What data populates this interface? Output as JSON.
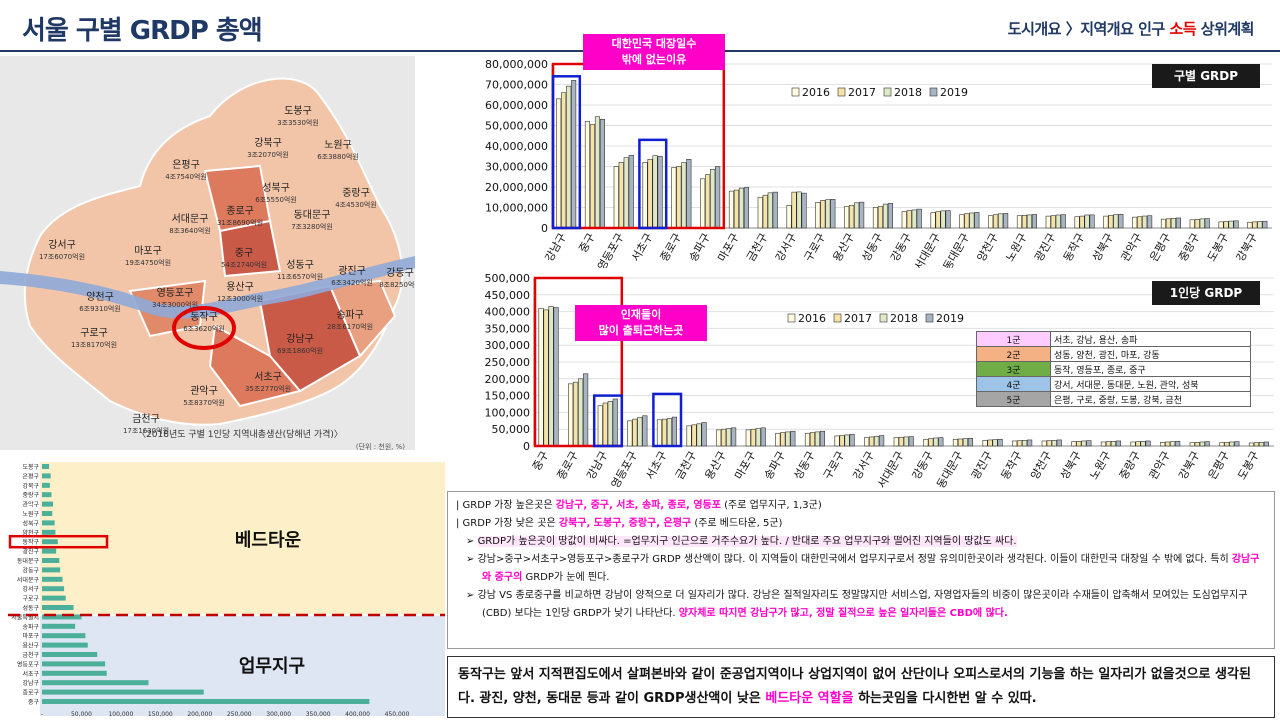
{
  "header": {
    "title": "서울 구별 GRDP 총액",
    "nav_prefix": "도시개요 〉지역개요 인구 ",
    "nav_highlight": "소득",
    "nav_suffix": " 상위계획"
  },
  "map": {
    "caption": "〈2018년도 구별 1인당 지역내총생산(당해년 가격)〉",
    "unit": "(단위 : 천원, %)",
    "districts": [
      {
        "name": "도봉구",
        "value": "3조3530억원"
      },
      {
        "name": "강북구",
        "value": "3조2070억원"
      },
      {
        "name": "노원구",
        "value": "6조3880억원"
      },
      {
        "name": "은평구",
        "value": "4조7540억원"
      },
      {
        "name": "성북구",
        "value": "6조5550억원"
      },
      {
        "name": "중랑구",
        "value": "4조4530억원"
      },
      {
        "name": "서대문구",
        "value": "8조3640억원"
      },
      {
        "name": "종로구",
        "value": "31조8690억원"
      },
      {
        "name": "동대문구",
        "value": "7조3280억원"
      },
      {
        "name": "강서구",
        "value": "17조6070억원"
      },
      {
        "name": "마포구",
        "value": "19조4750억원"
      },
      {
        "name": "중구",
        "value": "54조2740억원"
      },
      {
        "name": "성동구",
        "value": "11조6570억원"
      },
      {
        "name": "광진구",
        "value": "6조3420억원"
      },
      {
        "name": "강동구",
        "value": "8조8250억원"
      },
      {
        "name": "양천구",
        "value": "6조9310억원"
      },
      {
        "name": "영등포구",
        "value": "34조3000억원"
      },
      {
        "name": "용산구",
        "value": "12조3000억원"
      },
      {
        "name": "송파구",
        "value": "28조6170억원"
      },
      {
        "name": "구로구",
        "value": "13조8170억원"
      },
      {
        "name": "동작구",
        "value": "6조3620억원"
      },
      {
        "name": "강남구",
        "value": "69조1860억원"
      },
      {
        "name": "서초구",
        "value": "35조2770억원"
      },
      {
        "name": "관악구",
        "value": "5조8370억원"
      },
      {
        "name": "금천구",
        "value": "17조1630억원"
      }
    ]
  },
  "callouts": {
    "top": "대한민국 대장일수\n밖에 없는이유",
    "mid": "인재들이\n많이 출퇴근하는곳"
  },
  "labels": {
    "chart1": "구별 GRDP",
    "chart2": "1인당 GRDP",
    "bed": "베드타운",
    "biz": "업무지구"
  },
  "groups": [
    {
      "label": "1군",
      "members": "서초, 강남, 용산, 송파",
      "color": "#ffccff"
    },
    {
      "label": "2군",
      "members": "성동, 양천, 광진, 마포, 강동",
      "color": "#f4b183"
    },
    {
      "label": "3군",
      "members": "동작, 영등포, 종로, 중구",
      "color": "#70ad47"
    },
    {
      "label": "4군",
      "members": "강서, 서대문, 동대문, 노원, 관악, 성북",
      "color": "#9dc3e6"
    },
    {
      "label": "5군",
      "members": "은평, 구로, 중랑, 도봉, 강북, 금천",
      "color": "#a5a5a5"
    }
  ],
  "notes": {
    "l1a": "| GRDP 가장 높은곳은 ",
    "l1b": "강남구, 중구, 서초, 송파, 종로, 영등포",
    "l1c": " (주로 업무지구, 1,3군)",
    "l2a": "| GRDP 가장 낮은 곳은 ",
    "l2b": "강북구, 도봉구, 중랑구, 은평구",
    "l2c": " (주로 베드타운, 5군)",
    "l3": "GRDP가 높은곳이 땅값이 비싸다. =업무지구 인근으로 거주수요가 높다. / 반대로 주요 업무지구와 떨어진 지역들이 땅값도 싸다.",
    "l4a": "강남>중구>서초구>영등포구>종로구가 GRDP 생산액이 많다. 이 지역들이 대한민국에서 업무지구로서 정말 유의미한곳이라 생각된다. 이들이 대한민국 대장일 수 밖에 없다. 특히 ",
    "l4b": "강남구와 중구의",
    "l4c": " GRDP가 눈에 띈다.",
    "l5a": "강남 VS 종로중구를 비교하면 강남이 양적으로 더 일자리가 많다. 강남은 질적일자리도 정말많지만 서비스업, 자영업자들의 비중이 많은곳이라 수재들이 압축해서 모여있는 도심업무지구(CBD) 보다는 1인당 GRDP가 낮기 나타난다. ",
    "l5b": "양자체로 따지면 강남구가 많고, 정말 질적으로 높은 일자리들은 CBD에 많다."
  },
  "conclusion": {
    "a": "동작구는 앞서 지적편집도에서 살펴본바와 같이 준공업지역이나 상업지역이 없어 산단이나 오피스로서의 기능을 하는 일자리가 없을것으로 생각된다. 광진, 양천, 동대문 등과 같이 GRDP생산액이 낮은 ",
    "b": "베드타운 역할을",
    "c": " 하는곳임을 다시한번 알 수 있따."
  },
  "chart_data": [
    {
      "type": "bar",
      "title": "구별 GRDP",
      "categories": [
        "강남구",
        "중구",
        "영등포구",
        "서초구",
        "종로구",
        "송파구",
        "마포구",
        "금천구",
        "강서구",
        "구로구",
        "용산구",
        "성동구",
        "강동구",
        "서대문구",
        "동대문구",
        "양천구",
        "노원구",
        "광진구",
        "동작구",
        "성북구",
        "관악구",
        "은평구",
        "중랑구",
        "도봉구",
        "강북구"
      ],
      "series": [
        {
          "name": "2016",
          "color": "#fffbe0",
          "values": [
            63000000,
            52000000,
            30000000,
            32000000,
            29500000,
            24000000,
            18000000,
            15000000,
            11000000,
            12500000,
            10500000,
            10000000,
            8000000,
            7500000,
            6500000,
            6000000,
            6000000,
            5800000,
            5500000,
            5800000,
            5300000,
            4300000,
            4000000,
            3000000,
            2800000
          ]
        },
        {
          "name": "2017",
          "color": "#f4e2a8",
          "values": [
            66000000,
            50500000,
            32000000,
            33500000,
            30000000,
            26000000,
            18500000,
            16000000,
            17500000,
            13500000,
            11000000,
            10500000,
            8500000,
            8000000,
            7000000,
            6500000,
            6200000,
            6000000,
            5800000,
            6200000,
            5500000,
            4500000,
            4200000,
            3200000,
            3000000
          ]
        },
        {
          "name": "2018",
          "color": "#dfe9c8",
          "values": [
            69186000,
            54274000,
            34300000,
            35277000,
            31869000,
            28617000,
            19475000,
            17163000,
            17607000,
            13817000,
            12300000,
            11657000,
            8825000,
            8364000,
            7328000,
            6931000,
            6388000,
            6342000,
            6362000,
            6555000,
            5837000,
            4754000,
            4453000,
            3353000,
            3207000
          ]
        },
        {
          "name": "2019",
          "color": "#a9b4c2",
          "values": [
            72000000,
            53000000,
            35500000,
            35000000,
            33500000,
            30000000,
            19800000,
            17500000,
            17000000,
            14000000,
            12600000,
            12000000,
            9200000,
            8500000,
            7600000,
            7100000,
            6600000,
            6500000,
            6400000,
            6700000,
            6000000,
            4900000,
            4600000,
            3500000,
            3300000
          ]
        }
      ],
      "ylim": [
        0,
        80000000
      ],
      "yticks": [
        "0",
        "10,000,000",
        "20,000,000",
        "30,000,000",
        "40,000,000",
        "50,000,000",
        "60,000,000",
        "70,000,000",
        "80,000,000"
      ],
      "legend": "top"
    },
    {
      "type": "bar",
      "title": "1인당 GRDP",
      "categories": [
        "중구",
        "종로구",
        "강남구",
        "영등포구",
        "서초구",
        "금천구",
        "용산구",
        "마포구",
        "송파구",
        "성동구",
        "구로구",
        "강서구",
        "서대문구",
        "강동구",
        "동대문구",
        "광진구",
        "동작구",
        "양천구",
        "성북구",
        "노원구",
        "중랑구",
        "관악구",
        "강북구",
        "은평구",
        "도봉구"
      ],
      "series": [
        {
          "name": "2016",
          "color": "#fffbe0",
          "values": [
            410000,
            185000,
            120000,
            75000,
            78000,
            60000,
            48000,
            48000,
            38000,
            38000,
            30000,
            25000,
            25000,
            20000,
            20000,
            17000,
            15000,
            15000,
            13000,
            12000,
            12000,
            11000,
            10000,
            10000,
            9000
          ]
        },
        {
          "name": "2017",
          "color": "#f4e2a8",
          "values": [
            405000,
            190000,
            128000,
            80000,
            80000,
            63000,
            50000,
            50000,
            40000,
            40000,
            31000,
            27000,
            26000,
            22000,
            21000,
            18000,
            16000,
            16000,
            14000,
            13000,
            13000,
            12000,
            11000,
            11000,
            10000
          ]
        },
        {
          "name": "2018",
          "color": "#dfe9c8",
          "values": [
            415000,
            200000,
            133000,
            85000,
            82000,
            66000,
            52000,
            52000,
            42000,
            42000,
            33000,
            29000,
            27000,
            24000,
            22000,
            19000,
            17000,
            17000,
            15000,
            14000,
            14000,
            13000,
            12000,
            12000,
            11000
          ]
        },
        {
          "name": "2019",
          "color": "#a9b4c2",
          "values": [
            412000,
            215000,
            140000,
            90000,
            86000,
            70000,
            54000,
            54000,
            44000,
            44000,
            35000,
            31000,
            28000,
            25000,
            23000,
            20000,
            18000,
            18000,
            16000,
            15000,
            15000,
            14000,
            13000,
            13000,
            12000
          ]
        }
      ],
      "ylim": [
        0,
        500000
      ],
      "yticks": [
        "0",
        "50,000",
        "100,000",
        "150,000",
        "200,000",
        "250,000",
        "300,000",
        "350,000",
        "400,000",
        "450,000",
        "500,000"
      ],
      "legend": "top"
    },
    {
      "type": "bar",
      "orientation": "horizontal",
      "title": "",
      "categories": [
        "도봉구",
        "은평구",
        "강북구",
        "중랑구",
        "관악구",
        "노원구",
        "성북구",
        "양천구",
        "동작구",
        "광진구",
        "동대문구",
        "강동구",
        "서대문구",
        "강서구",
        "구로구",
        "성동구",
        "서울특별시",
        "송파구",
        "마포구",
        "용산구",
        "금천구",
        "영등포구",
        "서초구",
        "강남구",
        "종로구",
        "중구"
      ],
      "values": [
        9000,
        11000,
        10000,
        12000,
        14000,
        13000,
        16000,
        17000,
        20000,
        18000,
        22000,
        23000,
        26000,
        28000,
        30000,
        40000,
        50000,
        42000,
        55000,
        58000,
        70000,
        80000,
        82000,
        135000,
        205000,
        415000
      ],
      "xlim": [
        0,
        450000
      ],
      "xticks": [
        "-",
        "50,000",
        "100,000",
        "150,000",
        "200,000",
        "250,000",
        "300,000",
        "350,000",
        "400,000",
        "450,000"
      ]
    }
  ]
}
